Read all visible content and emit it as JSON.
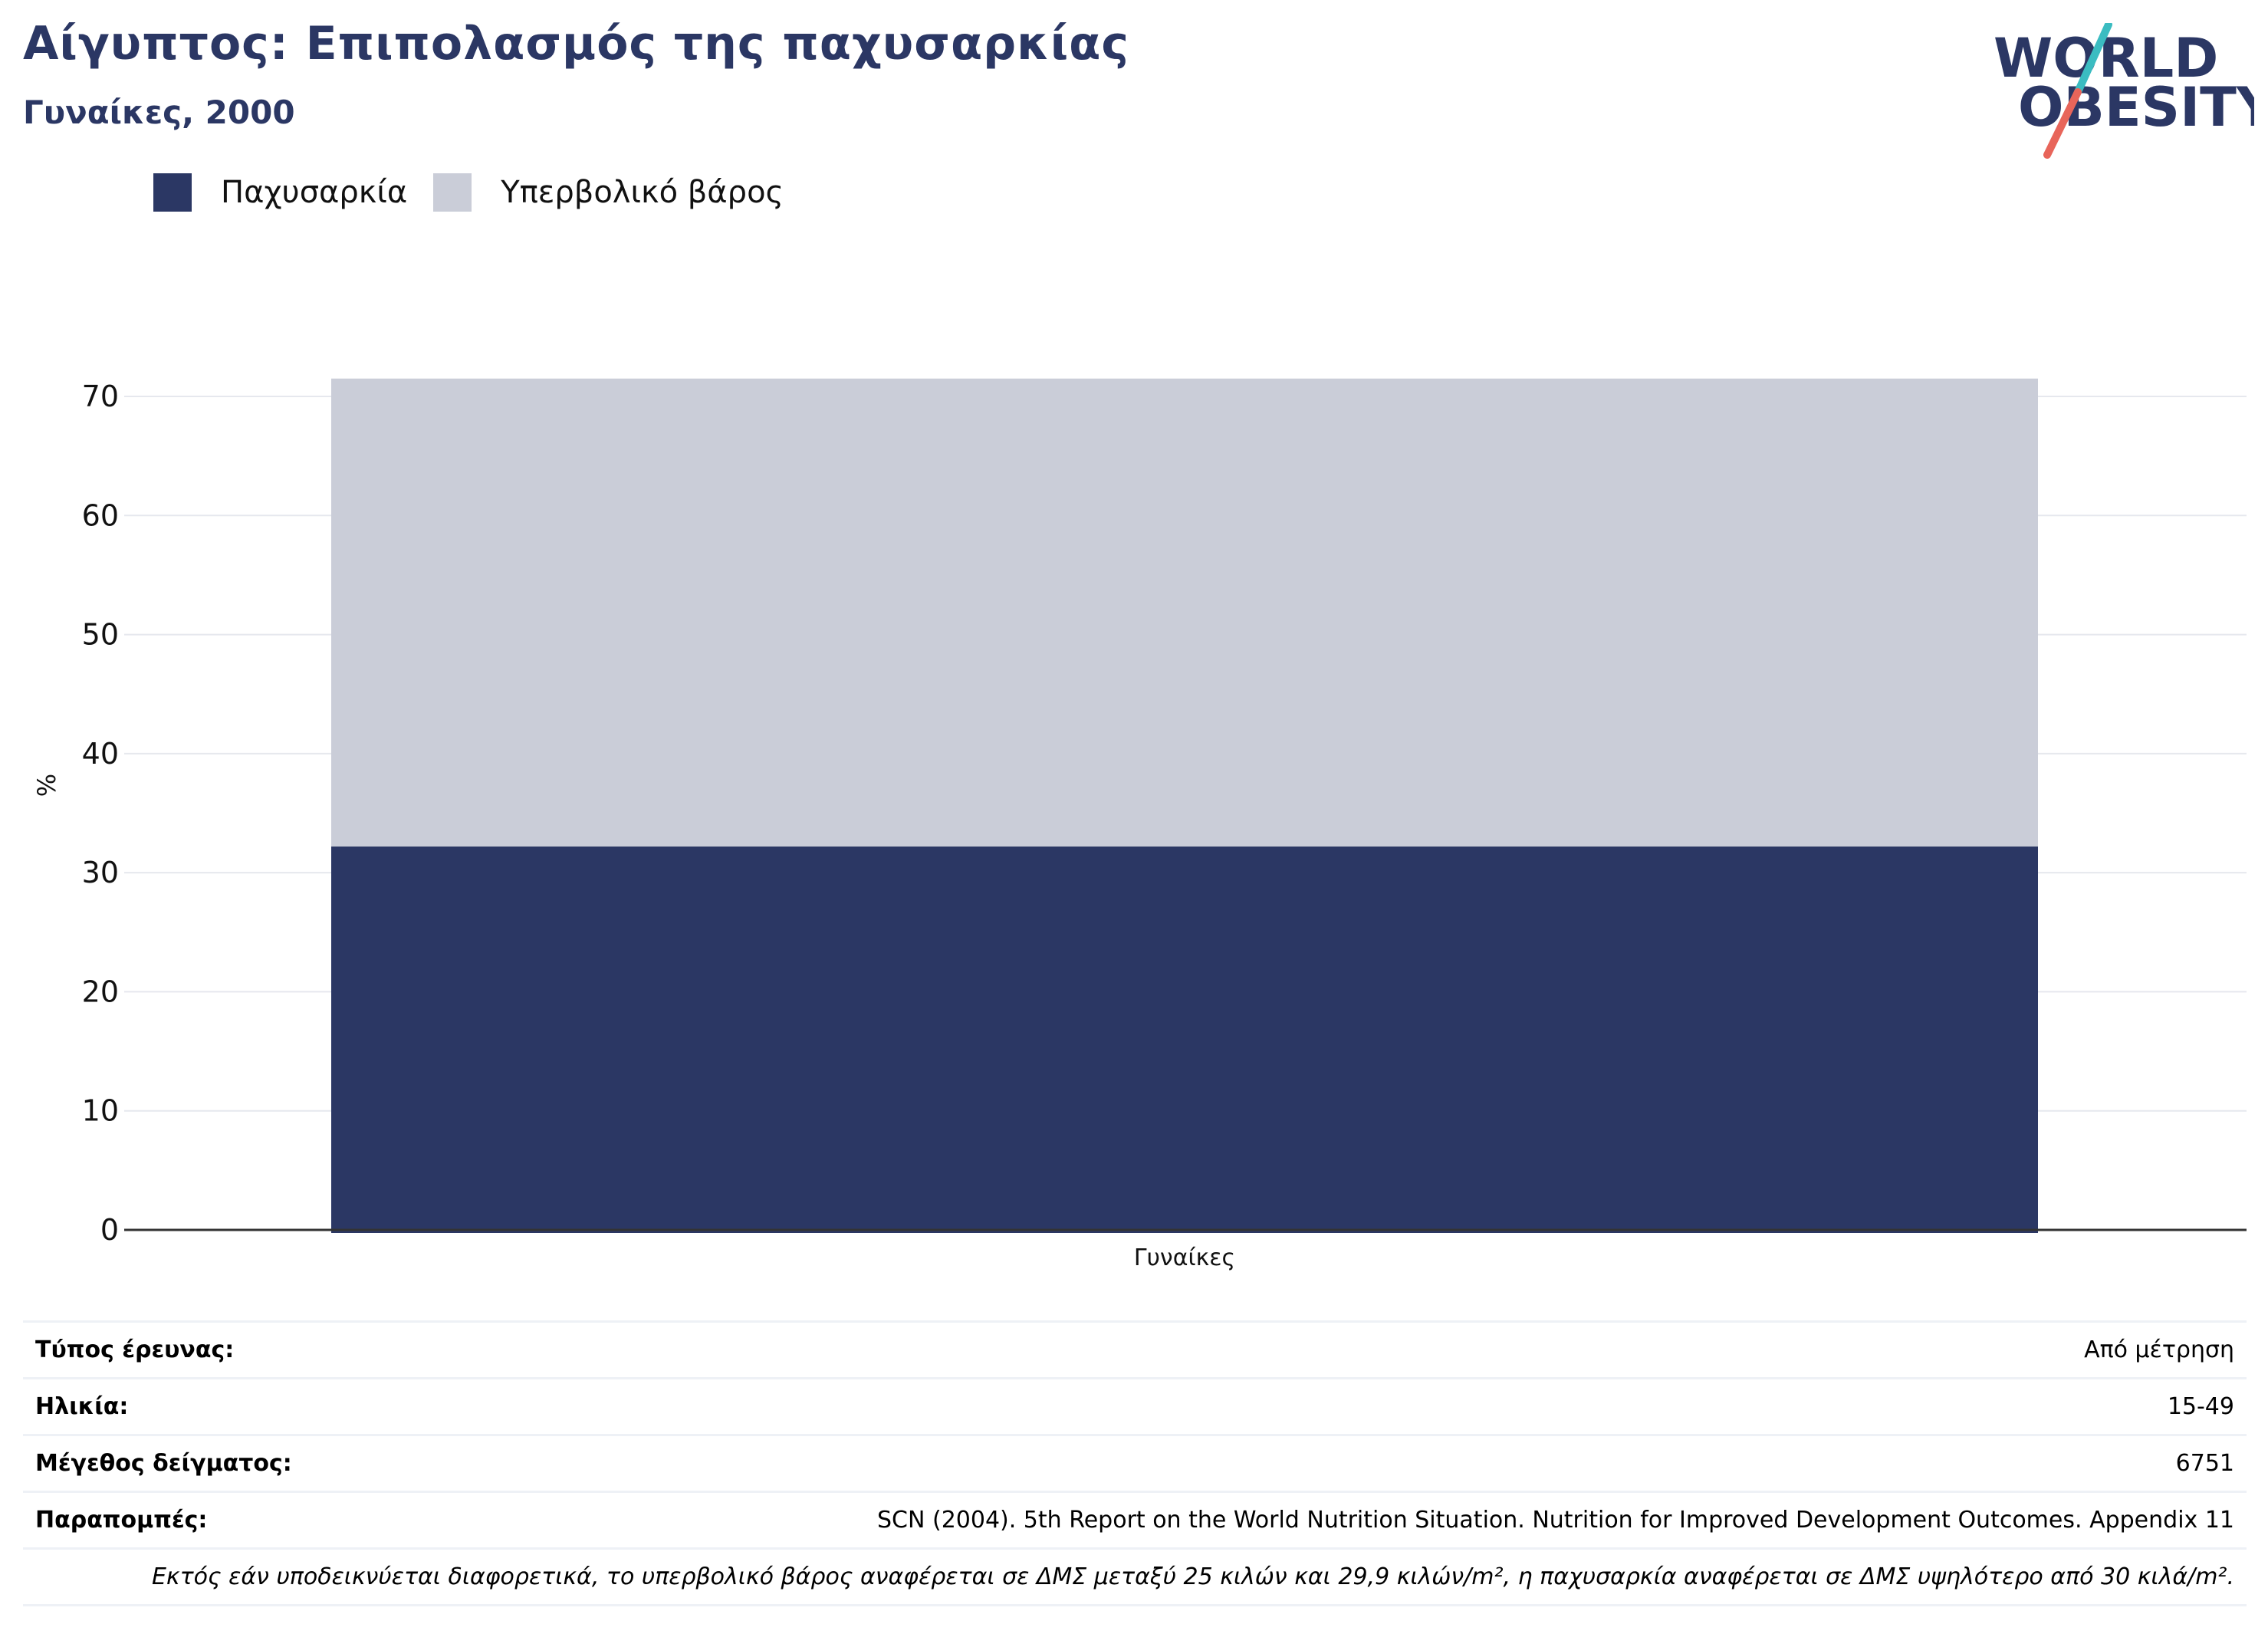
{
  "header": {
    "title": "Αίγυπτος: Επιπολασμός της παχυσαρκίας",
    "subtitle": "Γυναίκες, 2000"
  },
  "logo": {
    "line1": "WORLD",
    "line2": "OBESITY"
  },
  "colors": {
    "obesity": "#2b3764",
    "overweight": "#cacdd8",
    "title": "#2b3764",
    "logo_slash_teal": "#3bbcc1",
    "logo_slash_red": "#e8655a"
  },
  "chart_data": {
    "type": "bar",
    "stacked": true,
    "categories": [
      "Γυναίκες"
    ],
    "series": [
      {
        "name": "Παχυσαρκία",
        "values": [
          32.2
        ]
      },
      {
        "name": "Υπερβολικό βάρος",
        "values": [
          39.3
        ]
      }
    ],
    "ylabel": "%",
    "ylim": [
      0,
      72
    ],
    "yticks": [
      0,
      10,
      20,
      30,
      40,
      50,
      60,
      70
    ],
    "grid": true,
    "legend": "top-left"
  },
  "info": {
    "rows": [
      {
        "key": "Τύπος έρευνας:",
        "value": "Από μέτρηση"
      },
      {
        "key": "Ηλικία:",
        "value": "15-49"
      },
      {
        "key": "Μέγεθος δείγματος:",
        "value": "6751"
      },
      {
        "key": "Παραπομπές:",
        "value": "SCN (2004). 5th Report on the World Nutrition Situation. Nutrition for Improved Development Outcomes. Appendix 11"
      }
    ],
    "note": "Εκτός εάν υποδεικνύεται διαφορετικά, το υπερβολικό βάρος αναφέρεται σε ΔΜΣ μεταξύ 25 κιλών και 29,9 κιλών/m², η παχυσαρκία αναφέρεται σε ΔΜΣ υψηλότερο από 30 κιλά/m²."
  }
}
